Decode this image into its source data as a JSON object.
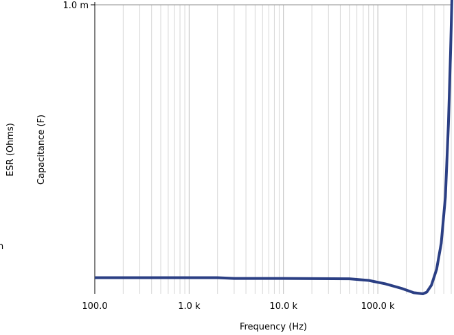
{
  "chart_data": {
    "type": "line",
    "xlabel": "Frequency (Hz)",
    "ylabel": "Capacitance (F)",
    "ylabel_secondary": "ESR (Ohms)",
    "secondary_tick_fragment": "n",
    "x_scale": "log",
    "y_scale": "log",
    "xlim": [
      100,
      600000
    ],
    "ylim": [
      7e-07,
      0.001
    ],
    "x_ticks": [
      {
        "value": 100,
        "label": "100.0"
      },
      {
        "value": 1000,
        "label": "1.0 k"
      },
      {
        "value": 10000,
        "label": "10.0 k"
      },
      {
        "value": 100000,
        "label": "100.0 k"
      }
    ],
    "y_ticks": [
      {
        "value": 0.001,
        "label": "1.0 m"
      }
    ],
    "grid": true,
    "line_color": "#2b3f84",
    "series": [
      {
        "x": [
          100,
          500,
          2000,
          3000,
          10000,
          50000,
          80000,
          120000,
          180000,
          240000,
          300000,
          330000,
          370000,
          420000,
          470000,
          520000,
          560000,
          590000,
          610000
        ],
        "y": [
          1.05e-06,
          1.05e-06,
          1.05e-06,
          1.03e-06,
          1.03e-06,
          1.02e-06,
          9.8e-07,
          9e-07,
          8e-07,
          7.2e-07,
          7e-07,
          7.3e-07,
          8.7e-07,
          1.3e-06,
          2.5e-06,
          8e-06,
          5e-05,
          0.0003,
          0.0012
        ]
      }
    ]
  }
}
